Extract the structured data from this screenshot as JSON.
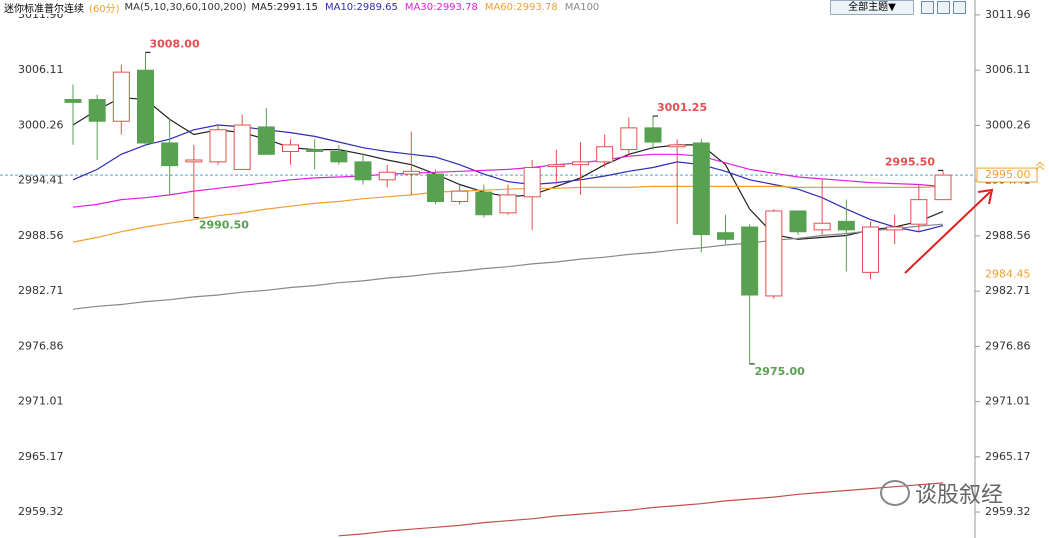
{
  "chart_data": {
    "type": "candlestick",
    "title": "迷你标准普尔连续",
    "period": "(60分)",
    "indicator": "MA(5,10,30,60,100,200)",
    "button": "全部主题▼",
    "watermark": "谈股叙经",
    "categories": [
      null,
      null,
      null,
      null,
      null,
      null,
      null,
      null,
      null,
      null,
      null,
      null,
      null,
      null,
      null,
      null,
      null,
      null,
      null,
      null,
      null,
      null,
      null,
      null,
      null,
      null,
      null,
      null,
      null,
      null,
      null,
      null,
      null,
      null,
      null,
      null,
      null
    ],
    "up_color": "#e0504f",
    "down_color": "#57a150",
    "candles": {
      "open": [
        3003.0,
        3003.0,
        3000.7,
        3006.1,
        2998.4,
        2996.4,
        2996.4,
        2995.6,
        3000.1,
        2997.5,
        2997.7,
        2997.5,
        2996.4,
        2994.5,
        2995.1,
        2995.1,
        2992.2,
        2993.2,
        2991.0,
        2992.7,
        2995.9,
        2996.1,
        2996.4,
        2997.7,
        3000.0,
        2998.0,
        2998.4,
        2988.9,
        2989.5,
        2982.2,
        2991.2,
        2989.2,
        2990.1,
        2984.7,
        2989.2,
        2989.8,
        2992.4
      ],
      "high": [
        3004.6,
        3003.5,
        3006.7,
        3008.0,
        3000.9,
        2998.2,
        3000.3,
        3001.4,
        3002.1,
        2998.8,
        2998.8,
        2998.2,
        2997.2,
        2996.1,
        2999.6,
        2995.6,
        2994.0,
        2994.0,
        2994.0,
        2996.6,
        2997.7,
        2998.5,
        2999.3,
        3001.1,
        3001.25,
        2998.8,
        2998.8,
        2990.8,
        2989.8,
        2991.4,
        2991.2,
        2994.5,
        2992.4,
        2990.1,
        2990.8,
        2994.0,
        2995.5
      ],
      "low": [
        2998.2,
        2996.6,
        2999.3,
        2998.2,
        2992.9,
        2990.5,
        2996.1,
        2995.6,
        2997.2,
        2996.1,
        2995.6,
        2996.1,
        2994.0,
        2993.7,
        2992.9,
        2991.9,
        2991.9,
        2990.5,
        2990.8,
        2989.2,
        2994.0,
        2992.9,
        2995.8,
        2997.2,
        2997.7,
        2989.8,
        2986.8,
        2987.7,
        2975.0,
        2981.9,
        2988.7,
        2988.7,
        2984.8,
        2984.0,
        2987.7,
        2989.0,
        2992.4
      ],
      "close": [
        3002.7,
        3000.7,
        3005.9,
        2998.4,
        2996.0,
        2996.6,
        2999.8,
        3000.3,
        2997.2,
        2998.2,
        2997.5,
        2996.4,
        2994.5,
        2995.3,
        2995.4,
        2992.2,
        2993.3,
        2990.8,
        2992.9,
        2995.8,
        2996.1,
        2996.4,
        2998.0,
        3000.0,
        2998.5,
        2998.2,
        2988.7,
        2988.2,
        2982.3,
        2991.2,
        2989.0,
        2989.9,
        2989.2,
        2989.5,
        2989.5,
        2992.4,
        2995.0
      ],
      "high_labels": [
        null,
        null,
        null,
        "3008.00",
        null,
        null,
        null,
        null,
        null,
        null,
        null,
        null,
        null,
        null,
        null,
        null,
        null,
        null,
        null,
        null,
        null,
        null,
        null,
        null,
        "3001.25",
        null,
        null,
        null,
        null,
        null,
        null,
        null,
        null,
        null,
        null,
        null,
        "2995.50"
      ],
      "low_labels": [
        null,
        null,
        null,
        null,
        null,
        "2990.50",
        null,
        null,
        null,
        null,
        null,
        null,
        null,
        null,
        null,
        null,
        null,
        null,
        null,
        null,
        null,
        null,
        null,
        null,
        null,
        null,
        null,
        null,
        "2975.00",
        null,
        null,
        null,
        null,
        null,
        null,
        null,
        null
      ]
    },
    "series": [
      {
        "name": "MA5:2991.15",
        "color": "#222222",
        "values": [
          3000.3,
          3001.9,
          3003.2,
          3003.0,
          3000.9,
          2999.3,
          2999.8,
          2999.5,
          2998.8,
          2997.9,
          2997.7,
          2997.7,
          2997.2,
          2996.6,
          2996.1,
          2995.1,
          2994.0,
          2993.2,
          2992.7,
          2992.9,
          2993.8,
          2994.7,
          2996.1,
          2997.2,
          2997.9,
          2998.2,
          2998.2,
          2996.1,
          2991.4,
          2988.7,
          2988.2,
          2988.4,
          2988.6,
          2989.2,
          2989.5,
          2990.1,
          2991.15
        ]
      },
      {
        "name": "MA10:2989.65",
        "color": "#2c2cb8",
        "values": [
          2994.5,
          2995.6,
          2997.2,
          2998.2,
          2998.8,
          2999.8,
          3000.3,
          3000.1,
          2999.8,
          2999.5,
          2999.1,
          2998.5,
          2997.9,
          2997.5,
          2997.2,
          2996.9,
          2996.1,
          2995.1,
          2994.3,
          2994.0,
          2994.2,
          2994.5,
          2994.9,
          2995.4,
          2995.8,
          2996.4,
          2996.1,
          2995.4,
          2994.5,
          2994.0,
          2993.5,
          2992.6,
          2991.4,
          2990.3,
          2989.5,
          2989.0,
          2989.65
        ]
      },
      {
        "name": "MA30:2993.78",
        "color": "#e020e0",
        "values": [
          2991.6,
          2991.9,
          2992.4,
          2992.6,
          2992.9,
          2993.3,
          2993.6,
          2993.9,
          2994.2,
          2994.5,
          2994.7,
          2994.8,
          2994.9,
          2995.1,
          2995.2,
          2995.3,
          2995.4,
          2995.5,
          2995.6,
          2995.8,
          2996.1,
          2996.3,
          2996.6,
          2997.0,
          2997.2,
          2997.2,
          2997.0,
          2996.3,
          2995.6,
          2995.2,
          2994.8,
          2994.6,
          2994.4,
          2994.2,
          2994.1,
          2994.0,
          2993.78
        ]
      },
      {
        "name": "MA60:2993.78",
        "color": "#f0a030",
        "values": [
          2987.9,
          2988.4,
          2989.0,
          2989.5,
          2989.9,
          2990.3,
          2990.7,
          2991.0,
          2991.4,
          2991.7,
          2992.0,
          2992.2,
          2992.5,
          2992.7,
          2992.9,
          2993.2,
          2993.3,
          2993.4,
          2993.5,
          2993.6,
          2993.6,
          2993.7,
          2993.7,
          2993.7,
          2993.8,
          2993.8,
          2993.8,
          2993.8,
          2993.8,
          2993.8,
          2993.7,
          2993.7,
          2993.7,
          2993.7,
          2993.7,
          2993.7,
          2993.78
        ]
      },
      {
        "name": "MA100",
        "color": "#888888",
        "values": [
          2980.8,
          2981.1,
          2981.3,
          2981.6,
          2981.8,
          2982.1,
          2982.3,
          2982.6,
          2982.8,
          2983.1,
          2983.3,
          2983.6,
          2983.8,
          2984.1,
          2984.3,
          2984.6,
          2984.8,
          2985.1,
          2985.3,
          2985.6,
          2985.8,
          2986.1,
          2986.3,
          2986.6,
          2986.8,
          2987.1,
          2987.3,
          2987.6,
          2987.8,
          2988.1,
          2988.3,
          2988.6,
          2988.8,
          2989.1,
          2989.3,
          2989.6,
          2989.8
        ]
      },
      {
        "color": "#c0504d",
        "values": [
          null,
          null,
          null,
          null,
          null,
          null,
          null,
          null,
          null,
          null,
          null,
          2956.8,
          2957.0,
          2957.3,
          2957.5,
          2957.7,
          2957.9,
          2958.2,
          2958.4,
          2958.6,
          2958.9,
          2959.1,
          2959.3,
          2959.5,
          2959.8,
          2960.0,
          2960.2,
          2960.5,
          2960.7,
          2960.9,
          2961.2,
          2961.4,
          2961.6,
          2961.8,
          2962.0,
          2962.2,
          2962.4
        ]
      }
    ],
    "reference_levels": [
      {
        "value": 2995.0,
        "label": "2995.00",
        "color": "#f0a030",
        "line_color": "#5aa0d0"
      },
      {
        "value": 2984.45,
        "color": "#f0a030"
      }
    ],
    "ylim": [
      2956.57,
      3013.54
    ],
    "yticks": [
      3011.96,
      3006.11,
      3000.26,
      2994.41,
      2988.56,
      2982.71,
      2976.86,
      2971.01,
      2965.17,
      2959.32
    ]
  }
}
